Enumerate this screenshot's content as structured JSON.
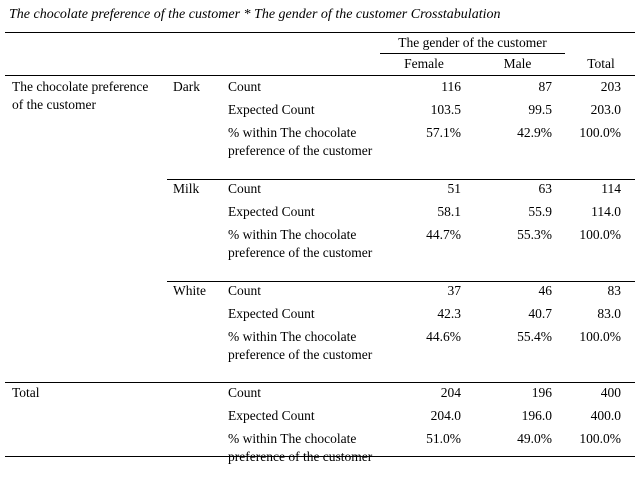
{
  "title": "The chocolate preference of the customer * The gender of the customer Crosstabulation",
  "header": {
    "group_label": "The gender of the customer",
    "columns": [
      "Female",
      "Male"
    ],
    "total_label": "Total"
  },
  "row_variable_label": "The chocolate preference of the customer",
  "stat_labels": {
    "count": "Count",
    "expected": "Expected Count",
    "pct": "% within The chocolate preference of the customer"
  },
  "groups": [
    {
      "label": "Dark",
      "count": [
        "116",
        "87",
        "203"
      ],
      "expected": [
        "103.5",
        "99.5",
        "203.0"
      ],
      "pct": [
        "57.1%",
        "42.9%",
        "100.0%"
      ]
    },
    {
      "label": "Milk",
      "count": [
        "51",
        "63",
        "114"
      ],
      "expected": [
        "58.1",
        "55.9",
        "114.0"
      ],
      "pct": [
        "44.7%",
        "55.3%",
        "100.0%"
      ]
    },
    {
      "label": "White",
      "count": [
        "37",
        "46",
        "83"
      ],
      "expected": [
        "42.3",
        "40.7",
        "83.0"
      ],
      "pct": [
        "44.6%",
        "55.4%",
        "100.0%"
      ]
    }
  ],
  "total": {
    "label": "Total",
    "count": [
      "204",
      "196",
      "400"
    ],
    "expected": [
      "204.0",
      "196.0",
      "400.0"
    ],
    "pct": [
      "51.0%",
      "49.0%",
      "100.0%"
    ]
  }
}
